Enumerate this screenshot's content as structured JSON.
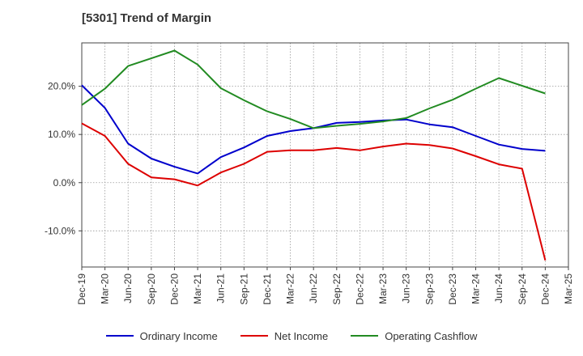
{
  "chart_data": {
    "type": "line",
    "title": "[5301]  Trend of Margin",
    "xlabel": "",
    "ylabel": "",
    "ylim": [
      -17.5,
      29.0
    ],
    "yticks": [
      -10,
      0,
      10,
      20
    ],
    "ytick_labels": [
      "-10.0%",
      "0.0%",
      "10.0%",
      "20.0%"
    ],
    "x_tick_labels": [
      "Dec-19",
      "Mar-20",
      "Jun-20",
      "Sep-20",
      "Dec-20",
      "Mar-21",
      "Jun-21",
      "Sep-21",
      "Dec-21",
      "Mar-22",
      "Jun-22",
      "Sep-22",
      "Dec-22",
      "Mar-23",
      "Jun-23",
      "Sep-23",
      "Dec-23",
      "Mar-24",
      "Jun-24",
      "Sep-24",
      "Dec-24",
      "Mar-25"
    ],
    "grid": true,
    "legend_position": "bottom",
    "series": [
      {
        "name": "Ordinary Income",
        "color": "#0000cc",
        "values": [
          20.2,
          15.5,
          8.1,
          5.0,
          3.3,
          1.9,
          5.3,
          7.3,
          9.7,
          10.7,
          11.3,
          12.4,
          12.6,
          12.9,
          13.1,
          12.1,
          11.5,
          9.7,
          7.9,
          7.0,
          6.6,
          null
        ]
      },
      {
        "name": "Net Income",
        "color": "#dd0000",
        "values": [
          12.3,
          9.7,
          3.9,
          1.1,
          0.7,
          -0.6,
          2.1,
          3.9,
          6.4,
          6.7,
          6.7,
          7.2,
          6.7,
          7.5,
          8.1,
          7.8,
          7.1,
          5.5,
          3.8,
          2.9,
          -16.1,
          null
        ]
      },
      {
        "name": "Operating Cashflow",
        "color": "#228b22",
        "values": [
          16.1,
          19.5,
          24.2,
          25.8,
          27.4,
          24.5,
          19.6,
          17.1,
          14.8,
          13.2,
          11.3,
          11.8,
          12.2,
          12.7,
          13.4,
          15.4,
          17.2,
          19.5,
          21.7,
          20.1,
          18.5,
          null
        ]
      }
    ]
  }
}
